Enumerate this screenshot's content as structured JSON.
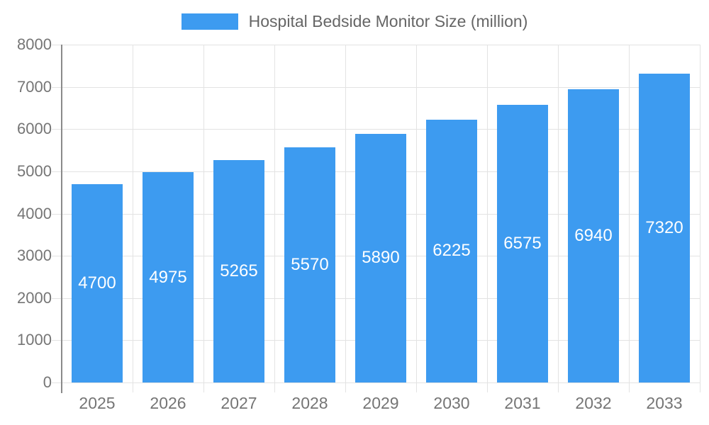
{
  "legend": {
    "label": "Hospital Bedside Monitor Size (million)"
  },
  "chart_data": {
    "type": "bar",
    "title": "Hospital Bedside Monitor Size (million)",
    "series_name": "Hospital Bedside Monitor Size (million)",
    "categories": [
      "2025",
      "2026",
      "2027",
      "2028",
      "2029",
      "2030",
      "2031",
      "2032",
      "2033"
    ],
    "values": [
      4700,
      4975,
      5265,
      5570,
      5890,
      6225,
      6575,
      6940,
      7320
    ],
    "data_labels": [
      "4700",
      "4975",
      "5265",
      "5570",
      "5890",
      "6225",
      "6575",
      "6940",
      "7320"
    ],
    "xlabel": "",
    "ylabel": "",
    "ylim": [
      0,
      8000
    ],
    "ytick_step": 1000,
    "ytick_labels": [
      "0",
      "1000",
      "2000",
      "3000",
      "4000",
      "5000",
      "6000",
      "7000",
      "8000"
    ],
    "grid": true,
    "legend_position": "top",
    "data_labels_position": "inside-center"
  },
  "colors": {
    "bar": "#3D9BF0",
    "bar_label": "#FFFFFF",
    "legend_text": "#666666",
    "axis_label": "#757575",
    "grid_line": "#E3E3E3",
    "axis_line": "#8A8A8A",
    "background": "#FFFFFF"
  }
}
